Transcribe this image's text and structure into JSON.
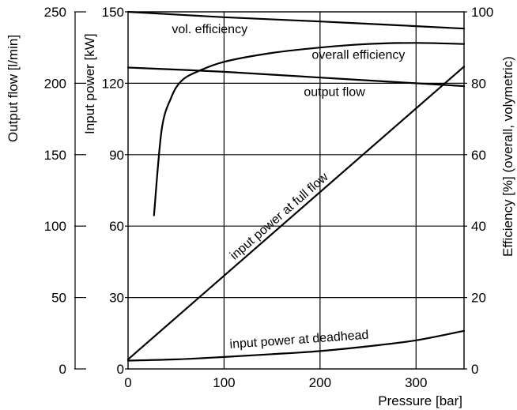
{
  "chart_data": {
    "type": "line",
    "grid": true,
    "x_axis": {
      "label": "Pressure [bar]",
      "range": [
        0,
        350
      ],
      "ticks": [
        0,
        100,
        200,
        300
      ]
    },
    "y_axes": [
      {
        "id": "flow",
        "label": "Output flow [l/min]",
        "range": [
          0,
          250
        ],
        "ticks": [
          0,
          50,
          100,
          150,
          200,
          250
        ]
      },
      {
        "id": "power",
        "label": "Input power [kW]",
        "range": [
          0,
          150
        ],
        "ticks": [
          0,
          30,
          60,
          90,
          120,
          150
        ]
      },
      {
        "id": "eff",
        "label": "Efficiency [%] (overall, volymetric)",
        "range": [
          0,
          100
        ],
        "ticks": [
          0,
          20,
          40,
          60,
          80,
          100
        ]
      }
    ],
    "series": [
      {
        "name": "vol. efficiency",
        "axis": "eff",
        "x": [
          0,
          100,
          200,
          300,
          350
        ],
        "y": [
          100,
          98.5,
          97.3,
          96.0,
          95.3
        ]
      },
      {
        "name": "overall efficiency",
        "axis": "eff",
        "x": [
          27,
          35,
          45,
          55,
          70,
          100,
          150,
          200,
          250,
          300,
          350
        ],
        "y": [
          43,
          67,
          76,
          80.5,
          83,
          86,
          88.5,
          90,
          91,
          91.3,
          91
        ]
      },
      {
        "name": "output flow",
        "axis": "flow",
        "x": [
          0,
          100,
          200,
          300,
          350
        ],
        "y": [
          211,
          208,
          204,
          200,
          198
        ]
      },
      {
        "name": "input power at full flow",
        "axis": "power",
        "x": [
          0,
          350
        ],
        "y": [
          4,
          127
        ]
      },
      {
        "name": "input power at deadhead",
        "axis": "power",
        "x": [
          0,
          50,
          100,
          150,
          200,
          250,
          300,
          350
        ],
        "y": [
          3.5,
          4,
          5,
          6.2,
          7.5,
          9.5,
          12,
          16
        ]
      }
    ]
  }
}
